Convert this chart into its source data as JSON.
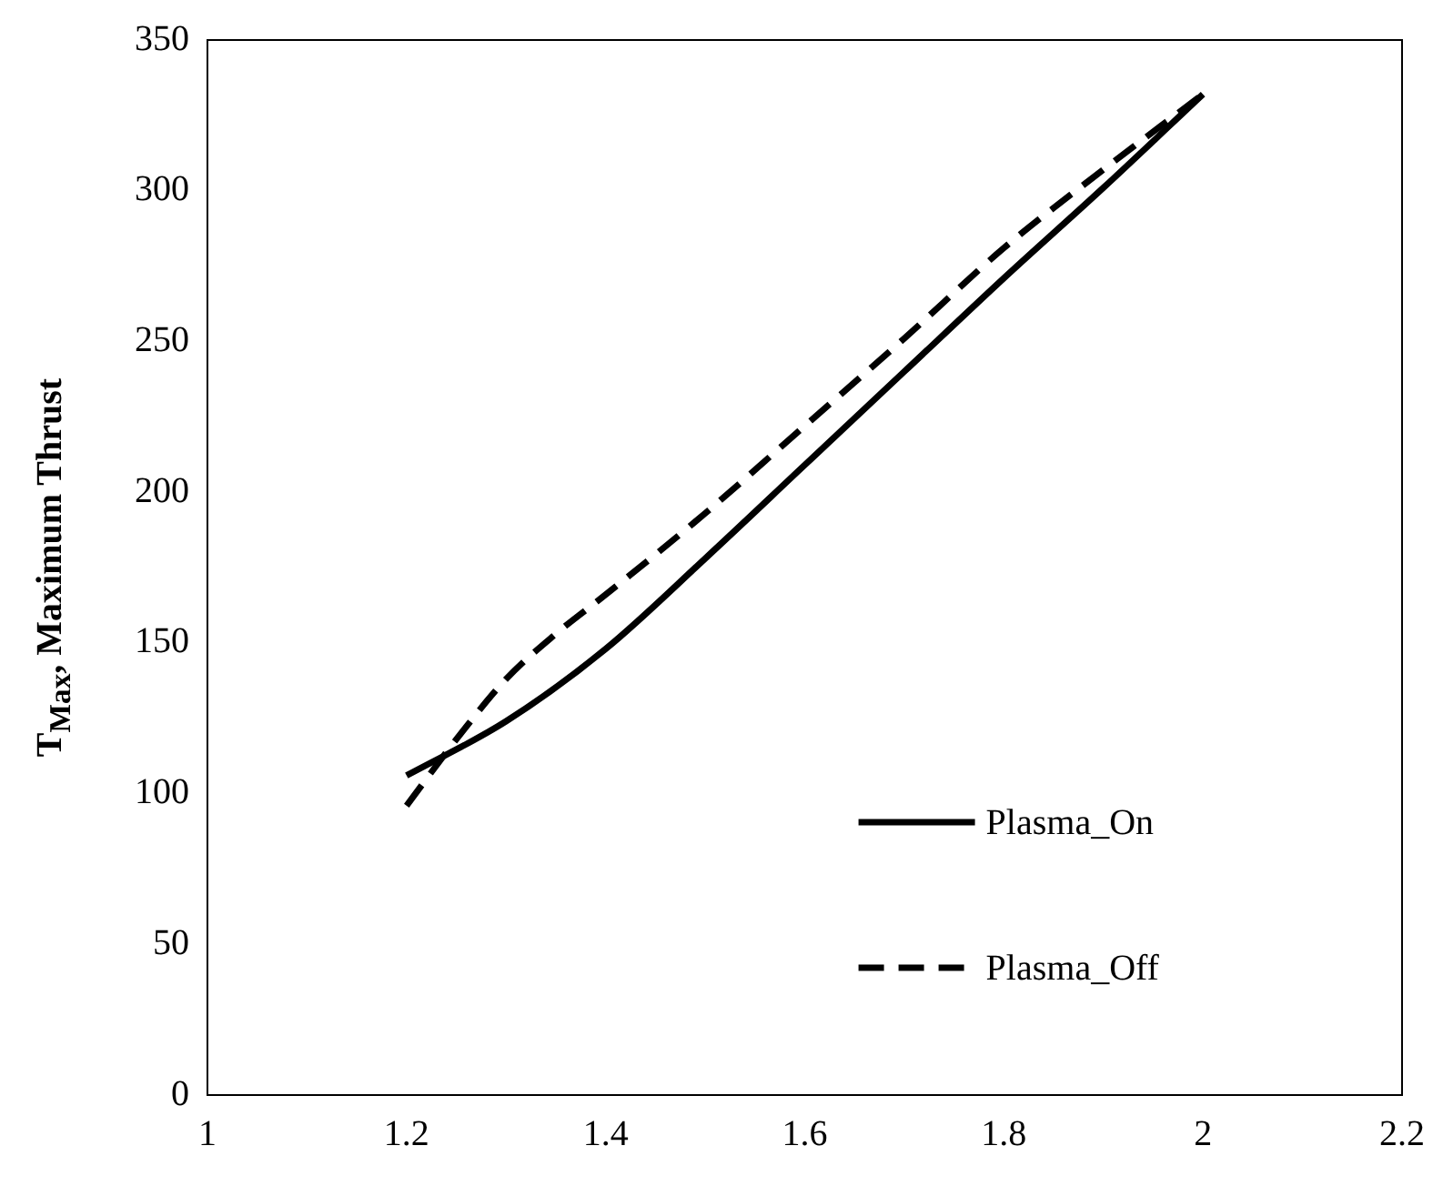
{
  "chart_data": {
    "type": "line",
    "ylabel": "T$_{Max}$, Maximum Thrust",
    "xlim": [
      1,
      2.2
    ],
    "xticks": [
      1,
      1.2,
      1.4,
      1.6,
      1.8,
      2,
      2.2
    ],
    "ylim": [
      0,
      350
    ],
    "yticks": [
      0,
      50,
      100,
      150,
      200,
      250,
      300,
      350
    ],
    "grid": false,
    "legend": "bottom right",
    "marker": "none",
    "series": [
      {
        "name": "Plasma_On",
        "color": "#000000",
        "line_style": "solid",
        "x": [
          1.2,
          1.3,
          1.4,
          1.5,
          1.6,
          1.7,
          1.8,
          1.9,
          2
        ],
        "values": [
          106,
          124,
          148,
          178,
          209,
          240,
          271,
          301,
          332
        ]
      },
      {
        "name": "Plasma_Off",
        "color": "#000000",
        "line_style": "dashed",
        "x": [
          1.2,
          1.25,
          1.3,
          1.35,
          1.4,
          1.5,
          1.6,
          1.7,
          1.8,
          1.9,
          2
        ],
        "values": [
          96,
          118,
          138,
          153,
          166,
          193,
          222,
          251,
          281,
          307,
          332
        ]
      }
    ]
  }
}
